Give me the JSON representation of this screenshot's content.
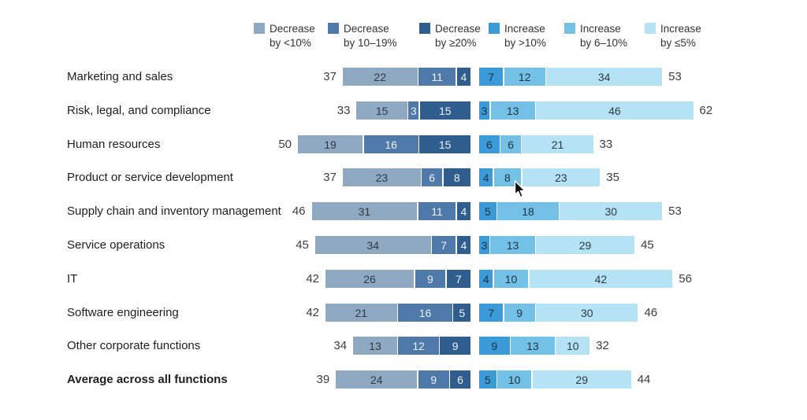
{
  "legend": {
    "items": [
      {
        "label": "Decrease",
        "sub": "by <10%",
        "color": "#8FA9C3"
      },
      {
        "label": "Decrease",
        "sub": "by 10–19%",
        "color": "#4E79A8"
      },
      {
        "label": "Decrease",
        "sub": "by ≥20%",
        "color": "#2F5E8E"
      },
      {
        "label": "Increase",
        "sub": "by >10%",
        "color": "#3B9BD8"
      },
      {
        "label": "Increase",
        "sub": "by 6–10%",
        "color": "#74C1E8"
      },
      {
        "label": "Increase",
        "sub": "by ≤5%",
        "color": "#B5E2F4"
      }
    ]
  },
  "colors": {
    "decrease_segments": [
      "#8FA9C3",
      "#4E79A8",
      "#2F5E8E"
    ],
    "increase_segments": [
      "#3B9BD8",
      "#74C1E8",
      "#B5E2F4"
    ],
    "decrease_value_text": [
      "#2E3A45",
      "#EDF1F6",
      "#EDF1F6"
    ],
    "increase_value_text": [
      "#1E3140",
      "#1E3140",
      "#2E3A45"
    ],
    "total_text": "#3d3d3d"
  },
  "chart_data": {
    "type": "bar",
    "subtype": "diverging-stacked-horizontal",
    "decrease_series": [
      "Decrease by <10%",
      "Decrease by 10–19%",
      "Decrease by ≥20%"
    ],
    "increase_series": [
      "Increase by >10%",
      "Increase by 6–10%",
      "Increase by ≤5%"
    ],
    "value_unit": "percent of respondents",
    "rows": [
      {
        "label": "Marketing and sales",
        "bold": false,
        "decrease": [
          22,
          11,
          4
        ],
        "decrease_total": 37,
        "increase": [
          7,
          12,
          34
        ],
        "increase_total": 53
      },
      {
        "label": "Risk, legal, and compliance",
        "bold": false,
        "decrease": [
          15,
          3,
          15
        ],
        "decrease_total": 33,
        "increase": [
          3,
          13,
          46
        ],
        "increase_total": 62
      },
      {
        "label": "Human resources",
        "bold": false,
        "decrease": [
          19,
          16,
          15
        ],
        "decrease_total": 50,
        "increase": [
          6,
          6,
          21
        ],
        "increase_total": 33
      },
      {
        "label": "Product or service development",
        "bold": false,
        "decrease": [
          23,
          6,
          8
        ],
        "decrease_total": 37,
        "increase": [
          4,
          8,
          23
        ],
        "increase_total": 35
      },
      {
        "label": "Supply chain and inventory management",
        "bold": false,
        "decrease": [
          31,
          11,
          4
        ],
        "decrease_total": 46,
        "increase": [
          5,
          18,
          30
        ],
        "increase_total": 53
      },
      {
        "label": "Service operations",
        "bold": false,
        "decrease": [
          34,
          7,
          4
        ],
        "decrease_total": 45,
        "increase": [
          3,
          13,
          29
        ],
        "increase_total": 45
      },
      {
        "label": "IT",
        "bold": false,
        "decrease": [
          26,
          9,
          7
        ],
        "decrease_total": 42,
        "increase": [
          4,
          10,
          42
        ],
        "increase_total": 56
      },
      {
        "label": "Software engineering",
        "bold": false,
        "decrease": [
          21,
          16,
          5
        ],
        "decrease_total": 42,
        "increase": [
          7,
          9,
          30
        ],
        "increase_total": 46
      },
      {
        "label": "Other corporate functions",
        "bold": false,
        "decrease": [
          13,
          12,
          9
        ],
        "decrease_total": 34,
        "increase": [
          9,
          13,
          10
        ],
        "increase_total": 32
      },
      {
        "label": "Average across all functions",
        "bold": true,
        "decrease": [
          24,
          9,
          6
        ],
        "decrease_total": 39,
        "increase": [
          5,
          10,
          29
        ],
        "increase_total": 44
      }
    ]
  }
}
